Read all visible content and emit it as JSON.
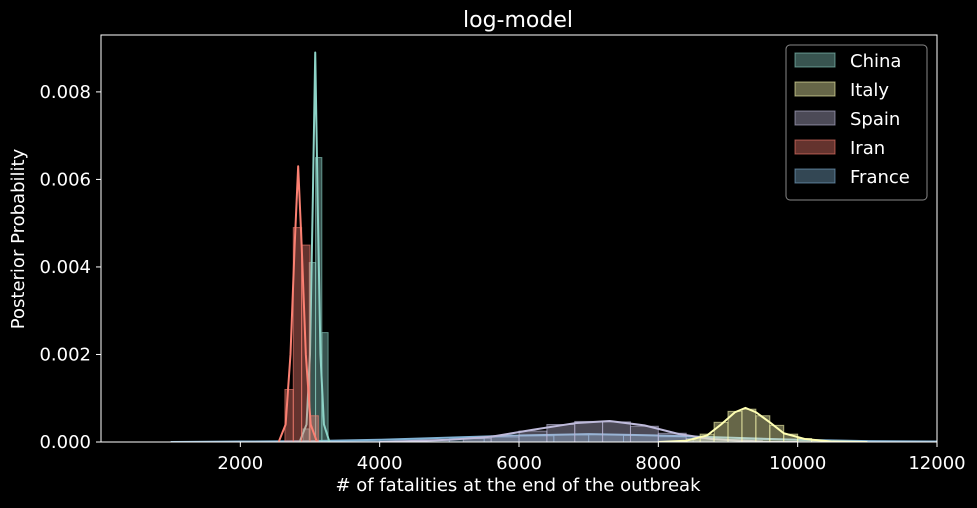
{
  "chart_data": {
    "type": "histogram-kde",
    "title": "log-model",
    "xlabel": "# of fatalities at the end of the outbreak",
    "ylabel": "Posterior Probability",
    "xlim": [
      0,
      12000
    ],
    "ylim": [
      0,
      0.0093
    ],
    "x_ticks": [
      2000,
      4000,
      6000,
      8000,
      10000,
      12000
    ],
    "x_tick_labels": [
      "2000",
      "4000",
      "6000",
      "8000",
      "10000",
      "12000"
    ],
    "y_ticks": [
      0,
      0.002,
      0.004,
      0.006,
      0.008
    ],
    "y_tick_labels": [
      "0.000",
      "0.002",
      "0.004",
      "0.006",
      "0.008"
    ],
    "grid": false,
    "legend": "top-right",
    "series": [
      {
        "name": "China",
        "color": "#8dd3c7",
        "hist_bins": [
          [
            2900,
            2990,
            0.0003
          ],
          [
            2990,
            3080,
            0.0041
          ],
          [
            3080,
            3170,
            0.0065
          ],
          [
            3170,
            3260,
            0.0025
          ]
        ],
        "kde": [
          [
            2850,
            0
          ],
          [
            2950,
            0.0004
          ],
          [
            3000,
            0.002
          ],
          [
            3040,
            0.0055
          ],
          [
            3075,
            0.0089
          ],
          [
            3110,
            0.0055
          ],
          [
            3150,
            0.002
          ],
          [
            3200,
            0.0004
          ],
          [
            3280,
            0
          ]
        ]
      },
      {
        "name": "Italy",
        "color": "#ffffb3",
        "hist_bins": [
          [
            8400,
            8600,
            5e-05
          ],
          [
            8600,
            8800,
            0.00018
          ],
          [
            8800,
            9000,
            0.00045
          ],
          [
            9000,
            9200,
            0.0007
          ],
          [
            9200,
            9400,
            0.00075
          ],
          [
            9400,
            9600,
            0.0006
          ],
          [
            9600,
            9800,
            0.00038
          ],
          [
            9800,
            10000,
            0.00018
          ],
          [
            10000,
            10200,
            8e-05
          ],
          [
            10200,
            10400,
            3e-05
          ]
        ],
        "kde": [
          [
            8000,
            0
          ],
          [
            8400,
            3e-05
          ],
          [
            8700,
            0.00015
          ],
          [
            8900,
            0.0004
          ],
          [
            9100,
            0.00068
          ],
          [
            9250,
            0.00078
          ],
          [
            9400,
            0.00068
          ],
          [
            9600,
            0.00045
          ],
          [
            9800,
            0.0002
          ],
          [
            10100,
            7e-05
          ],
          [
            10500,
            1e-05
          ],
          [
            11000,
            0
          ]
        ]
      },
      {
        "name": "Spain",
        "color": "#bebada",
        "hist_bins": [
          [
            5200,
            5600,
            8e-05
          ],
          [
            5600,
            6000,
            0.00014
          ],
          [
            6000,
            6400,
            0.00025
          ],
          [
            6400,
            6800,
            0.0004
          ],
          [
            6800,
            7200,
            0.00047
          ],
          [
            7200,
            7600,
            0.00046
          ],
          [
            7600,
            8000,
            0.00036
          ],
          [
            8000,
            8400,
            0.0002
          ],
          [
            8400,
            8800,
            8e-05
          ]
        ],
        "kde": [
          [
            4000,
            0
          ],
          [
            5000,
            5e-05
          ],
          [
            5600,
            0.00012
          ],
          [
            6200,
            0.00028
          ],
          [
            6800,
            0.00043
          ],
          [
            7300,
            0.00048
          ],
          [
            7800,
            0.00038
          ],
          [
            8300,
            0.00018
          ],
          [
            8800,
            6e-05
          ],
          [
            9500,
            1e-05
          ],
          [
            10000,
            0
          ]
        ]
      },
      {
        "name": "Iran",
        "color": "#fb8072",
        "hist_bins": [
          [
            2640,
            2760,
            0.0012
          ],
          [
            2760,
            2880,
            0.0049
          ],
          [
            2880,
            3000,
            0.0045
          ],
          [
            3000,
            3120,
            0.0006
          ]
        ],
        "kde": [
          [
            2550,
            0
          ],
          [
            2650,
            0.0004
          ],
          [
            2720,
            0.002
          ],
          [
            2780,
            0.0045
          ],
          [
            2830,
            0.0063
          ],
          [
            2880,
            0.0045
          ],
          [
            2940,
            0.002
          ],
          [
            3010,
            0.0004
          ],
          [
            3100,
            0
          ]
        ]
      },
      {
        "name": "France",
        "color": "#80b1d3",
        "hist_bins": [
          [
            3000,
            4000,
            2e-05
          ],
          [
            4000,
            5000,
            5e-05
          ],
          [
            5000,
            5500,
            8e-05
          ],
          [
            5500,
            6000,
            0.00011
          ],
          [
            6000,
            6500,
            0.00014
          ],
          [
            6500,
            7000,
            0.00016
          ],
          [
            7000,
            7500,
            0.00017
          ],
          [
            7500,
            8000,
            0.00015
          ],
          [
            8000,
            8500,
            0.00012
          ],
          [
            8500,
            9000,
            9e-05
          ],
          [
            9000,
            10000,
            6e-05
          ],
          [
            10000,
            11000,
            3e-05
          ],
          [
            11000,
            12000,
            1e-05
          ]
        ],
        "kde": [
          [
            1000,
            0
          ],
          [
            2000,
            1e-05
          ],
          [
            3000,
            2e-05
          ],
          [
            4000,
            5e-05
          ],
          [
            5000,
            0.0001
          ],
          [
            6000,
            0.00015
          ],
          [
            7000,
            0.00018
          ],
          [
            8000,
            0.00015
          ],
          [
            9000,
            0.0001
          ],
          [
            10000,
            5e-05
          ],
          [
            11000,
            2e-05
          ],
          [
            12000,
            1e-05
          ]
        ]
      }
    ]
  }
}
